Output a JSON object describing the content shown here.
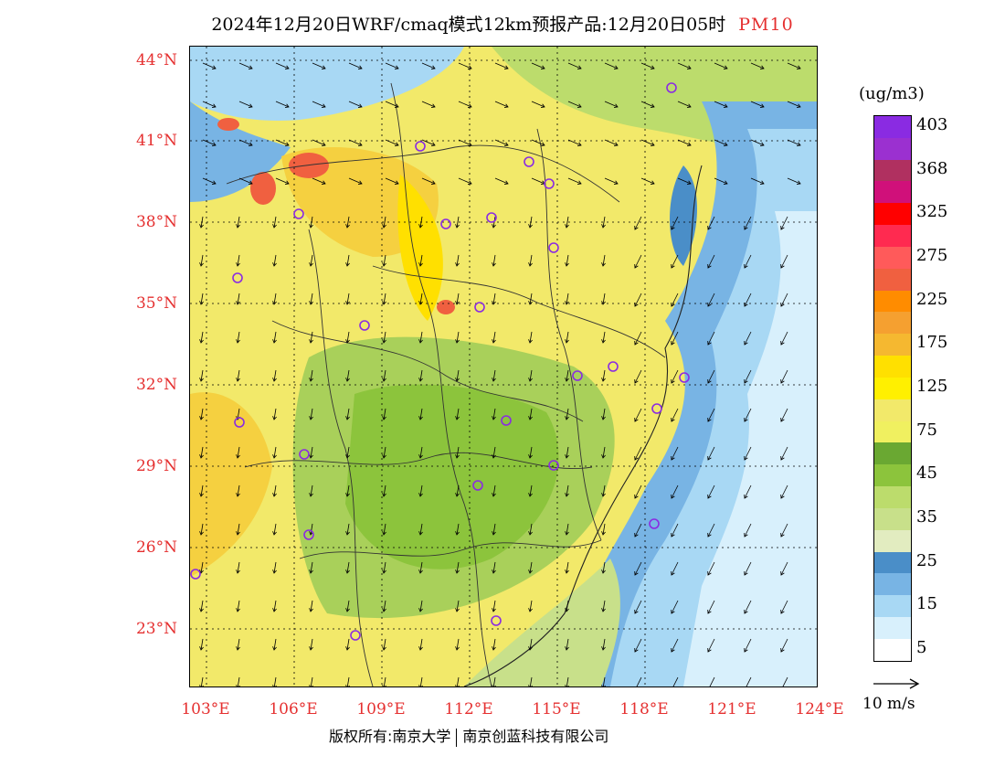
{
  "title": {
    "text": "2024年12月20日WRF/cmaq模式12km预报产品:12月20日05时",
    "pollutant": "PM10"
  },
  "colors": {
    "title_accent": "#e53030",
    "axis_labels": "#e53030",
    "station_markers": "#8a2be2"
  },
  "map": {
    "lat_labels": [
      "44°N",
      "41°N",
      "38°N",
      "35°N",
      "32°N",
      "29°N",
      "26°N",
      "23°N"
    ],
    "lon_labels": [
      "103°E",
      "106°E",
      "109°E",
      "112°E",
      "115°E",
      "118°E",
      "121°E",
      "124°E"
    ],
    "grid": "dotted",
    "features": [
      "PM10 concentration field",
      "wind vectors",
      "provincial boundaries",
      "city station markers"
    ]
  },
  "legend": {
    "unit": "(ug/m3)",
    "bins": [
      {
        "color": "#8a2be2",
        "label": "403"
      },
      {
        "color": "#9b30d0",
        "label": ""
      },
      {
        "color": "#b03060",
        "label": "368"
      },
      {
        "color": "#d0107a",
        "label": ""
      },
      {
        "color": "#ff0000",
        "label": "325"
      },
      {
        "color": "#ff2a50",
        "label": ""
      },
      {
        "color": "#ff5a5a",
        "label": "275"
      },
      {
        "color": "#f06040",
        "label": ""
      },
      {
        "color": "#ff8c00",
        "label": "225"
      },
      {
        "color": "#f5a030",
        "label": ""
      },
      {
        "color": "#f5b830",
        "label": "175"
      },
      {
        "color": "#ffe000",
        "label": ""
      },
      {
        "color": "#fff000",
        "label": "125"
      },
      {
        "color": "#f2e96a",
        "label": ""
      },
      {
        "color": "#f0f060",
        "label": "75"
      },
      {
        "color": "#6aa832",
        "label": ""
      },
      {
        "color": "#8cc43c",
        "label": "45"
      },
      {
        "color": "#bcdc6c",
        "label": ""
      },
      {
        "color": "#c8e08a",
        "label": "35"
      },
      {
        "color": "#e2ecc0",
        "label": ""
      },
      {
        "color": "#4a8ec8",
        "label": "25"
      },
      {
        "color": "#78b4e4",
        "label": ""
      },
      {
        "color": "#a8d8f4",
        "label": "15"
      },
      {
        "color": "#d8f0fc",
        "label": ""
      },
      {
        "color": "#ffffff",
        "label": "5"
      }
    ]
  },
  "wind_reference": {
    "label": "10 m/s"
  },
  "copyright": {
    "left": "版权所有:南京大学",
    "right": "南京创蓝科技有限公司"
  }
}
